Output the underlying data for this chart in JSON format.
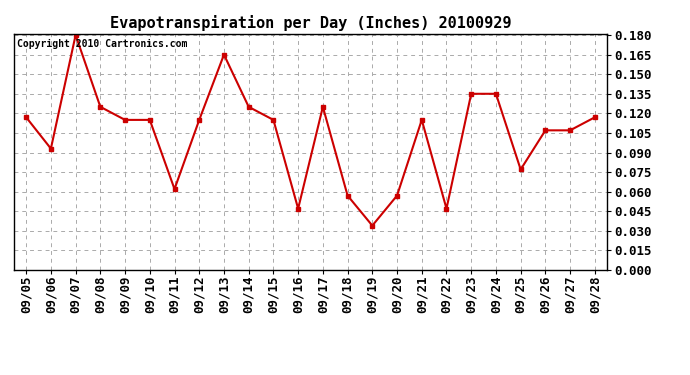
{
  "title": "Evapotranspiration per Day (Inches) 20100929",
  "copyright": "Copyright 2010 Cartronics.com",
  "x_labels": [
    "09/05",
    "09/06",
    "09/07",
    "09/08",
    "09/09",
    "09/10",
    "09/11",
    "09/12",
    "09/13",
    "09/14",
    "09/15",
    "09/16",
    "09/17",
    "09/18",
    "09/19",
    "09/20",
    "09/21",
    "09/22",
    "09/23",
    "09/24",
    "09/25",
    "09/26",
    "09/27",
    "09/28"
  ],
  "y_values": [
    0.117,
    0.093,
    0.18,
    0.125,
    0.115,
    0.115,
    0.062,
    0.115,
    0.165,
    0.125,
    0.115,
    0.047,
    0.125,
    0.057,
    0.034,
    0.057,
    0.115,
    0.047,
    0.135,
    0.135,
    0.077,
    0.107,
    0.107,
    0.117
  ],
  "line_color": "#cc0000",
  "marker": "s",
  "marker_size": 3.5,
  "ylim_min": 0.0,
  "ylim_max": 0.18,
  "ytick_step": 0.015,
  "grid_color": "#aaaaaa",
  "grid_style": "--",
  "bg_color": "#ffffff",
  "title_fontsize": 11,
  "copyright_fontsize": 7,
  "tick_fontsize": 9,
  "border_color": "#000000"
}
